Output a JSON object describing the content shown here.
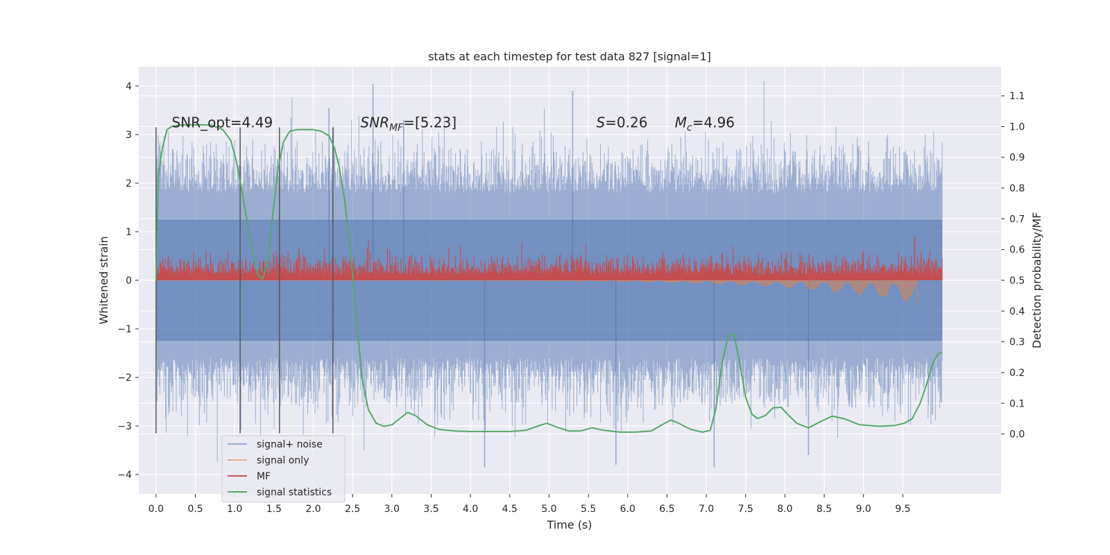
{
  "chart_data": {
    "type": "line",
    "title": "stats at each timestep for test data 827 [signal=1]",
    "xlabel": "Time (s)",
    "ylabel": "Whitened strain",
    "ylabel_right": "Detection probability/MF",
    "xlim": [
      -0.22,
      10.75
    ],
    "ylim": [
      -4.4,
      4.4
    ],
    "ylim_right": [
      -0.195,
      1.195
    ],
    "x_ticks": [
      0.0,
      0.5,
      1.0,
      1.5,
      2.0,
      2.5,
      3.0,
      3.5,
      4.0,
      4.5,
      5.0,
      5.5,
      6.0,
      6.5,
      7.0,
      7.5,
      8.0,
      8.5,
      9.0,
      9.5
    ],
    "x_tick_labels": [
      "0.0",
      "0.5",
      "1.0",
      "1.5",
      "2.0",
      "2.5",
      "3.0",
      "3.5",
      "4.0",
      "4.5",
      "5.0",
      "5.5",
      "6.0",
      "6.5",
      "7.0",
      "7.5",
      "8.0",
      "8.5",
      "9.0",
      "9.5"
    ],
    "y_ticks": [
      4,
      3,
      2,
      1,
      0,
      -1,
      -2,
      -3,
      -4
    ],
    "y_tick_labels": [
      "4",
      "3",
      "2",
      "1",
      "0",
      "−1",
      "−2",
      "−3",
      "−4"
    ],
    "y_right_ticks": [
      1.1,
      1.0,
      0.9,
      0.8,
      0.7,
      0.6,
      0.5,
      0.4,
      0.3,
      0.2,
      0.1,
      0.0
    ],
    "y_right_tick_labels": [
      "1.1",
      "1.0",
      "0.9",
      "0.8",
      "0.7",
      "0.6",
      "0.5",
      "0.4",
      "0.3",
      "0.2",
      "0.1",
      "0.0"
    ],
    "grid": true,
    "legend_position": "lower-left",
    "colors": {
      "background": "#eaeaf2",
      "noise": "#4c72b0",
      "signal": "#dd8452",
      "mf": "#c44e52",
      "stat": "#55a868",
      "vlines": "#555555"
    },
    "annotations": [
      {
        "x": 0.2,
        "y": 3.15,
        "text": "SNR_opt=4.49"
      },
      {
        "x": 2.6,
        "y": 3.15,
        "segments": [
          {
            "t": "SNR",
            "style": "italic"
          },
          {
            "t": "MF",
            "style": "italic-sub"
          },
          {
            "t": "=[5.23]",
            "style": "normal"
          }
        ]
      },
      {
        "x": 5.6,
        "y": 3.15,
        "segments": [
          {
            "t": "S",
            "style": "italic"
          },
          {
            "t": "=0.26",
            "style": "normal"
          }
        ]
      },
      {
        "x": 6.6,
        "y": 3.15,
        "segments": [
          {
            "t": "M",
            "style": "italic"
          },
          {
            "t": "c",
            "style": "italic-sub"
          },
          {
            "t": "=4.96",
            "style": "normal"
          }
        ]
      }
    ],
    "vertical_lines": [
      0.0,
      1.07,
      1.57,
      2.25
    ],
    "vertical_line_range": [
      -3.15,
      3.15
    ],
    "series": [
      {
        "name": "signal+ noise",
        "axis": "left",
        "style": "dense-noise",
        "x_range": [
          0.0,
          10.0
        ],
        "envelope_positive": [
          1.8,
          2.6
        ],
        "envelope_negative": [
          -1.6,
          -2.5
        ],
        "extreme_peaks": [
          {
            "x": 2.76,
            "y": 4.05
          },
          {
            "x": 5.3,
            "y": 3.9
          },
          {
            "x": 2.2,
            "y": 3.55
          },
          {
            "x": 3.15,
            "y": 3.3
          },
          {
            "x": 4.18,
            "y": -3.85
          },
          {
            "x": 5.85,
            "y": -3.8
          },
          {
            "x": 7.1,
            "y": -3.85
          },
          {
            "x": 8.3,
            "y": -3.6
          }
        ]
      },
      {
        "name": "signal only",
        "axis": "left",
        "style": "chirp",
        "x_range": [
          0.0,
          9.68
        ],
        "end_amplitude": -0.5
      },
      {
        "name": "MF",
        "axis": "right",
        "style": "noisy-band",
        "x_range": [
          0.0,
          10.0
        ],
        "baseline": 0.5,
        "band_top": 0.56,
        "spike": {
          "x": 9.65,
          "y": 0.64
        }
      },
      {
        "name": "signal statistics",
        "axis": "right",
        "x": [
          0.0,
          0.03,
          0.08,
          0.14,
          0.2,
          0.3,
          0.5,
          0.7,
          0.85,
          0.95,
          1.02,
          1.1,
          1.18,
          1.25,
          1.3,
          1.36,
          1.42,
          1.48,
          1.55,
          1.62,
          1.7,
          1.8,
          1.9,
          2.0,
          2.1,
          2.2,
          2.27,
          2.33,
          2.4,
          2.47,
          2.55,
          2.62,
          2.7,
          2.8,
          2.9,
          3.0,
          3.1,
          3.2,
          3.3,
          3.45,
          3.6,
          3.8,
          4.0,
          4.3,
          4.5,
          4.7,
          4.85,
          4.97,
          5.1,
          5.25,
          5.4,
          5.55,
          5.7,
          5.9,
          6.1,
          6.3,
          6.45,
          6.55,
          6.65,
          6.8,
          6.95,
          7.05,
          7.12,
          7.2,
          7.28,
          7.35,
          7.42,
          7.5,
          7.58,
          7.65,
          7.75,
          7.85,
          7.95,
          8.05,
          8.15,
          8.3,
          8.45,
          8.6,
          8.75,
          8.95,
          9.2,
          9.4,
          9.52,
          9.62,
          9.72,
          9.8,
          9.88,
          9.95,
          10.0
        ],
        "values": [
          0.5,
          0.84,
          0.93,
          0.99,
          1.0,
          1.005,
          1.006,
          1.005,
          0.99,
          0.955,
          0.89,
          0.78,
          0.66,
          0.565,
          0.515,
          0.505,
          0.56,
          0.7,
          0.86,
          0.95,
          0.985,
          0.99,
          0.99,
          0.99,
          0.985,
          0.97,
          0.93,
          0.87,
          0.76,
          0.6,
          0.38,
          0.18,
          0.08,
          0.035,
          0.025,
          0.03,
          0.05,
          0.07,
          0.06,
          0.03,
          0.015,
          0.01,
          0.008,
          0.008,
          0.008,
          0.012,
          0.025,
          0.035,
          0.022,
          0.01,
          0.01,
          0.02,
          0.012,
          0.006,
          0.006,
          0.01,
          0.032,
          0.045,
          0.035,
          0.015,
          0.006,
          0.012,
          0.08,
          0.23,
          0.322,
          0.325,
          0.24,
          0.12,
          0.065,
          0.05,
          0.06,
          0.085,
          0.087,
          0.06,
          0.035,
          0.02,
          0.04,
          0.058,
          0.05,
          0.03,
          0.025,
          0.028,
          0.035,
          0.05,
          0.1,
          0.16,
          0.23,
          0.262,
          0.265
        ]
      }
    ]
  }
}
